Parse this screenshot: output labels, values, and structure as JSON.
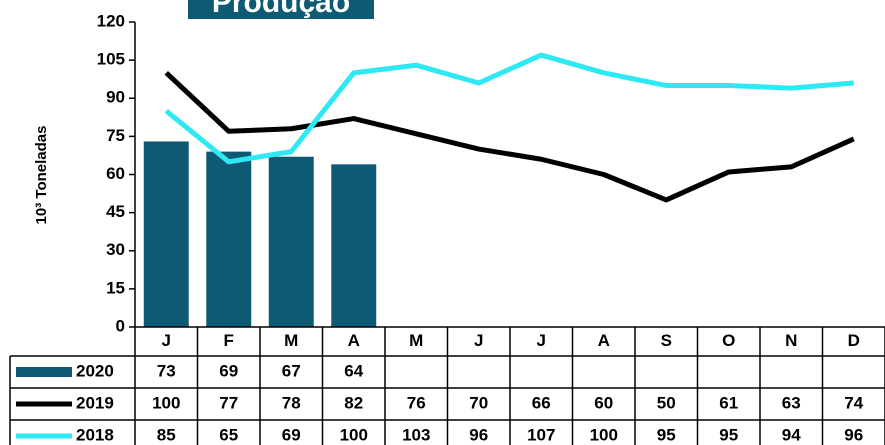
{
  "chart_data": {
    "type": "bar-line-table",
    "title": "Produção",
    "y_label": "10³ Toneladas",
    "categories": [
      "J",
      "F",
      "M",
      "A",
      "M",
      "J",
      "J",
      "A",
      "S",
      "O",
      "N",
      "D"
    ],
    "ylim": [
      0,
      120
    ],
    "yticks": [
      0,
      15,
      30,
      45,
      60,
      75,
      90,
      105,
      120
    ],
    "series": [
      {
        "name": "2020",
        "type": "bar",
        "color": "#0e5a74",
        "values": [
          73,
          69,
          67,
          64,
          null,
          null,
          null,
          null,
          null,
          null,
          null,
          null
        ]
      },
      {
        "name": "2019",
        "type": "line",
        "color": "#000000",
        "values": [
          100,
          77,
          78,
          82,
          76,
          70,
          66,
          60,
          50,
          61,
          63,
          74
        ]
      },
      {
        "name": "2018",
        "type": "line",
        "color": "#2ee9f4",
        "values": [
          85,
          65,
          69,
          100,
          103,
          96,
          107,
          100,
          95,
          95,
          94,
          96
        ]
      }
    ]
  }
}
